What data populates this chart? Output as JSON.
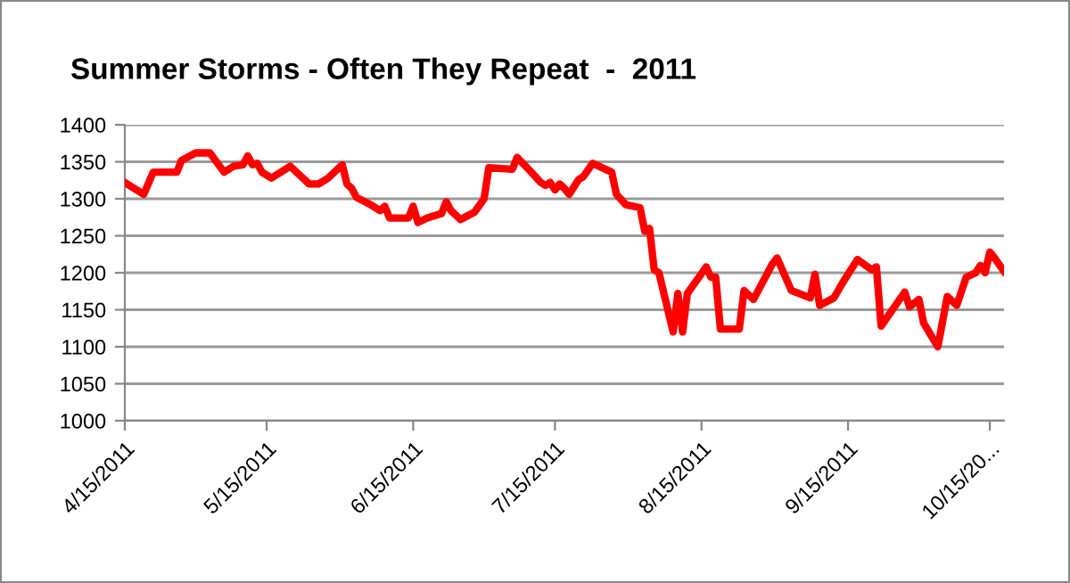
{
  "chart_data": {
    "type": "line",
    "title": "Summer Storms - Often They Repeat  -  2011",
    "x": [
      "2011-04-15",
      "2011-04-19",
      "2011-04-21",
      "2011-04-26",
      "2011-04-27",
      "2011-04-30",
      "2011-05-03",
      "2011-05-06",
      "2011-05-08",
      "2011-05-10",
      "2011-05-11",
      "2011-05-12",
      "2011-05-13",
      "2011-05-14",
      "2011-05-16",
      "2011-05-20",
      "2011-05-22",
      "2011-05-24",
      "2011-05-26",
      "2011-05-28",
      "2011-05-31",
      "2011-06-01",
      "2011-06-02",
      "2011-06-03",
      "2011-06-06",
      "2011-06-08",
      "2011-06-09",
      "2011-06-10",
      "2011-06-14",
      "2011-06-15",
      "2011-06-16",
      "2011-06-18",
      "2011-06-21",
      "2011-06-22",
      "2011-06-23",
      "2011-06-25",
      "2011-06-28",
      "2011-06-30",
      "2011-07-01",
      "2011-07-06",
      "2011-07-07",
      "2011-07-10",
      "2011-07-12",
      "2011-07-13",
      "2011-07-14",
      "2011-07-15",
      "2011-07-16",
      "2011-07-17",
      "2011-07-18",
      "2011-07-20",
      "2011-07-21",
      "2011-07-23",
      "2011-07-27",
      "2011-07-28",
      "2011-07-30",
      "2011-08-02",
      "2011-08-03",
      "2011-08-04",
      "2011-08-05",
      "2011-08-06",
      "2011-08-09",
      "2011-08-10",
      "2011-08-11",
      "2011-08-12",
      "2011-08-16",
      "2011-08-17",
      "2011-08-18",
      "2011-08-19",
      "2011-08-23",
      "2011-08-24",
      "2011-08-26",
      "2011-08-30",
      "2011-08-31",
      "2011-09-03",
      "2011-09-07",
      "2011-09-08",
      "2011-09-09",
      "2011-09-12",
      "2011-09-14",
      "2011-09-17",
      "2011-09-20",
      "2011-09-21",
      "2011-09-22",
      "2011-09-27",
      "2011-09-28",
      "2011-09-30",
      "2011-10-01",
      "2011-10-04",
      "2011-10-06",
      "2011-10-08",
      "2011-10-10",
      "2011-10-12",
      "2011-10-13",
      "2011-10-14",
      "2011-10-15",
      "2011-10-16",
      "2011-10-18"
    ],
    "series": [
      {
        "color": "#ff0000",
        "values": [
          1322,
          1306,
          1336,
          1336,
          1352,
          1362,
          1362,
          1336,
          1344,
          1346,
          1358,
          1346,
          1348,
          1336,
          1328,
          1344,
          1332,
          1320,
          1320,
          1328,
          1346,
          1320,
          1314,
          1302,
          1292,
          1284,
          1290,
          1274,
          1274,
          1290,
          1268,
          1274,
          1280,
          1296,
          1284,
          1272,
          1282,
          1300,
          1342,
          1340,
          1356,
          1336,
          1322,
          1318,
          1322,
          1312,
          1320,
          1314,
          1306,
          1326,
          1330,
          1348,
          1336,
          1306,
          1292,
          1288,
          1256,
          1260,
          1204,
          1200,
          1120,
          1172,
          1120,
          1172,
          1208,
          1194,
          1194,
          1124,
          1124,
          1176,
          1164,
          1212,
          1220,
          1176,
          1166,
          1198,
          1156,
          1166,
          1188,
          1218,
          1204,
          1208,
          1128,
          1174,
          1154,
          1164,
          1132,
          1100,
          1168,
          1156,
          1194,
          1200,
          1210,
          1200,
          1228,
          1220,
          1202
        ]
      }
    ],
    "xlim": [
      "2011-04-15",
      "2011-10-18"
    ],
    "xticks": [
      {
        "value": "2011-04-15",
        "label": "4/15/2011"
      },
      {
        "value": "2011-05-15",
        "label": "5/15/2011"
      },
      {
        "value": "2011-06-15",
        "label": "6/15/2011"
      },
      {
        "value": "2011-07-15",
        "label": "7/15/2011"
      },
      {
        "value": "2011-08-15",
        "label": "8/15/2011"
      },
      {
        "value": "2011-09-15",
        "label": "9/15/2011"
      },
      {
        "value": "2011-10-15",
        "label": "10/15/20..."
      }
    ],
    "ylim": [
      1000,
      1400
    ],
    "yticks": [
      1000,
      1050,
      1100,
      1150,
      1200,
      1250,
      1300,
      1350,
      1400
    ],
    "grid": "y",
    "marker": "none",
    "line_style": "solid",
    "legend": false
  }
}
